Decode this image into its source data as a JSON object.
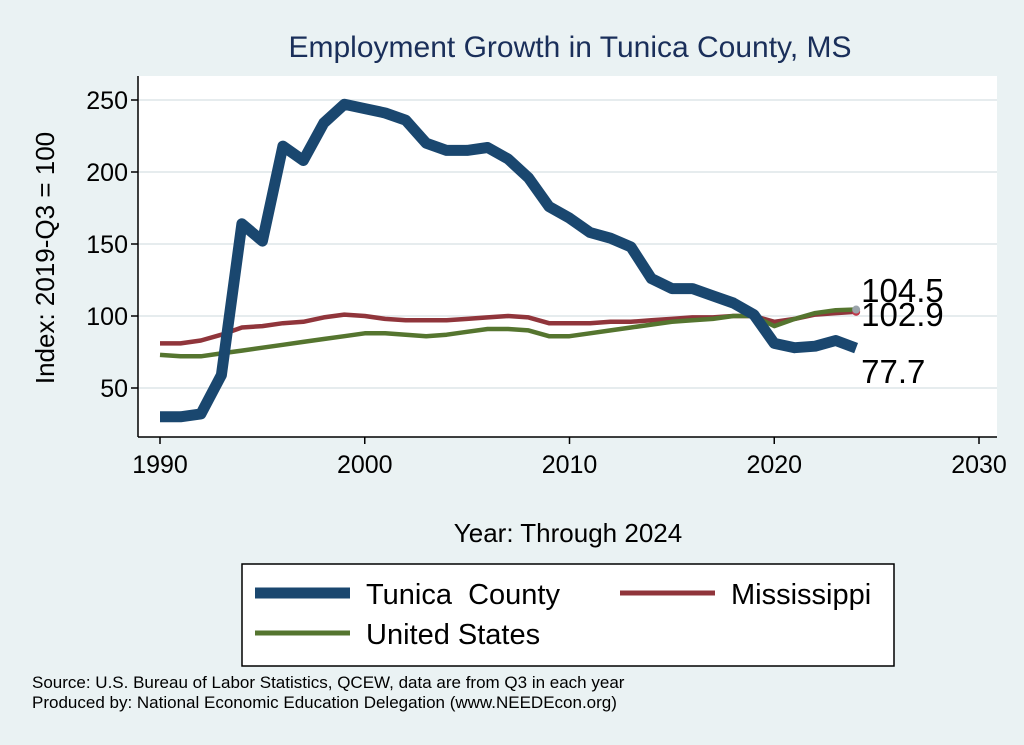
{
  "chart_data": {
    "type": "line",
    "title": "Employment Growth in Tunica County, MS",
    "xlabel": "Year: Through 2024",
    "ylabel": "Index: 2019-Q3 = 100",
    "xlim": [
      1990,
      2030
    ],
    "ylim": [
      25,
      260
    ],
    "xticks": [
      1990,
      2000,
      2010,
      2020,
      2030
    ],
    "yticks": [
      50,
      100,
      150,
      200,
      250
    ],
    "grid": "horizontal",
    "legend_position": "bottom",
    "x": [
      1990,
      1991,
      1992,
      1993,
      1994,
      1995,
      1996,
      1997,
      1998,
      1999,
      2000,
      2001,
      2002,
      2003,
      2004,
      2005,
      2006,
      2007,
      2008,
      2009,
      2010,
      2011,
      2012,
      2013,
      2014,
      2015,
      2016,
      2017,
      2018,
      2019,
      2020,
      2021,
      2022,
      2023,
      2024
    ],
    "series": [
      {
        "name": "Tunica  County",
        "color": "#1a476f",
        "values": [
          30,
          30,
          32,
          59,
          164,
          152,
          218,
          208,
          234,
          247,
          244,
          241,
          236,
          220,
          215,
          215,
          217,
          209,
          196,
          176,
          168,
          158,
          154,
          148,
          126,
          119,
          119,
          114,
          109,
          101,
          81,
          78,
          79,
          83,
          77.7
        ]
      },
      {
        "name": "Mississippi",
        "color": "#90353b",
        "values": [
          81,
          81,
          83,
          87,
          92,
          93,
          95,
          96,
          99,
          101,
          100,
          98,
          97,
          97,
          97,
          98,
          99,
          100,
          99,
          95,
          95,
          95,
          96,
          96,
          97,
          98,
          99,
          99,
          100,
          100,
          96,
          98,
          101,
          102,
          102.9
        ]
      },
      {
        "name": "United States",
        "color": "#55752f",
        "values": [
          73,
          72,
          72,
          74,
          76,
          78,
          80,
          82,
          84,
          86,
          88,
          88,
          87,
          86,
          87,
          89,
          91,
          91,
          90,
          86,
          86,
          88,
          90,
          92,
          94,
          96,
          97,
          98,
          100,
          100,
          93,
          98,
          102,
          104,
          104.5
        ]
      }
    ],
    "end_labels": [
      "104.5",
      "102.9",
      "77.7"
    ]
  },
  "source_line": "Source: U.S. Bureau of Labor Statistics, QCEW, data are from Q3 in each year",
  "produced_line": "Produced by: National Economic Education Delegation (www.NEEDEcon.org)"
}
